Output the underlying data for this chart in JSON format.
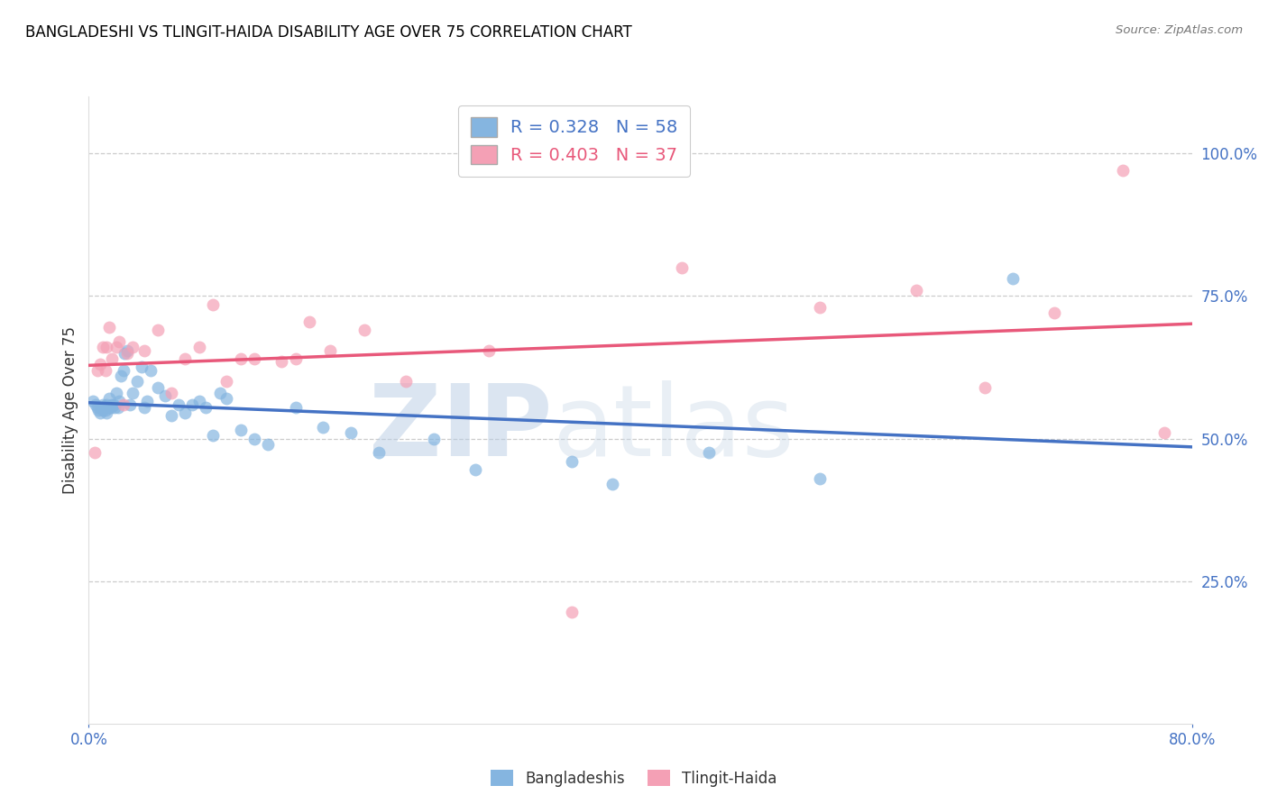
{
  "title": "BANGLADESHI VS TLINGIT-HAIDA DISABILITY AGE OVER 75 CORRELATION CHART",
  "source": "Source: ZipAtlas.com",
  "ylabel": "Disability Age Over 75",
  "x_min": 0.0,
  "x_max": 0.8,
  "y_min": 0.0,
  "y_max": 1.1,
  "y_ticks_right": [
    0.25,
    0.5,
    0.75,
    1.0
  ],
  "y_tick_labels_right": [
    "25.0%",
    "50.0%",
    "75.0%",
    "100.0%"
  ],
  "grid_color": "#cccccc",
  "background_color": "#ffffff",
  "blue_color": "#85b5e0",
  "pink_color": "#f4a0b5",
  "blue_line_color": "#4472c4",
  "pink_line_color": "#e8587a",
  "axis_color": "#4472c4",
  "title_color": "#000000",
  "R_blue": 0.328,
  "N_blue": 58,
  "R_pink": 0.403,
  "N_pink": 37,
  "watermark_zip": "ZIP",
  "watermark_atlas": "atlas",
  "legend_label_blue": "Bangladeshis",
  "legend_label_pink": "Tlingit-Haida",
  "blue_dots_x": [
    0.003,
    0.005,
    0.006,
    0.007,
    0.008,
    0.009,
    0.01,
    0.01,
    0.011,
    0.012,
    0.013,
    0.013,
    0.014,
    0.015,
    0.015,
    0.016,
    0.017,
    0.018,
    0.019,
    0.02,
    0.021,
    0.022,
    0.023,
    0.025,
    0.026,
    0.028,
    0.03,
    0.032,
    0.035,
    0.038,
    0.04,
    0.042,
    0.045,
    0.05,
    0.055,
    0.06,
    0.065,
    0.07,
    0.075,
    0.08,
    0.085,
    0.09,
    0.095,
    0.1,
    0.11,
    0.12,
    0.13,
    0.15,
    0.17,
    0.19,
    0.21,
    0.25,
    0.28,
    0.35,
    0.38,
    0.45,
    0.53,
    0.67
  ],
  "blue_dots_y": [
    0.565,
    0.56,
    0.555,
    0.55,
    0.545,
    0.555,
    0.55,
    0.56,
    0.555,
    0.55,
    0.545,
    0.56,
    0.555,
    0.555,
    0.57,
    0.555,
    0.56,
    0.56,
    0.555,
    0.58,
    0.555,
    0.565,
    0.61,
    0.62,
    0.65,
    0.655,
    0.56,
    0.58,
    0.6,
    0.625,
    0.555,
    0.565,
    0.62,
    0.59,
    0.575,
    0.54,
    0.56,
    0.545,
    0.56,
    0.565,
    0.555,
    0.505,
    0.58,
    0.57,
    0.515,
    0.5,
    0.49,
    0.555,
    0.52,
    0.51,
    0.475,
    0.5,
    0.445,
    0.46,
    0.42,
    0.475,
    0.43,
    0.78
  ],
  "pink_dots_x": [
    0.004,
    0.006,
    0.008,
    0.01,
    0.012,
    0.013,
    0.015,
    0.017,
    0.02,
    0.022,
    0.025,
    0.028,
    0.032,
    0.04,
    0.05,
    0.06,
    0.07,
    0.08,
    0.09,
    0.1,
    0.11,
    0.12,
    0.14,
    0.15,
    0.16,
    0.175,
    0.2,
    0.23,
    0.29,
    0.35,
    0.43,
    0.53,
    0.6,
    0.65,
    0.7,
    0.75,
    0.78
  ],
  "pink_dots_y": [
    0.475,
    0.62,
    0.63,
    0.66,
    0.62,
    0.66,
    0.695,
    0.64,
    0.66,
    0.67,
    0.56,
    0.65,
    0.66,
    0.655,
    0.69,
    0.58,
    0.64,
    0.66,
    0.735,
    0.6,
    0.64,
    0.64,
    0.635,
    0.64,
    0.705,
    0.655,
    0.69,
    0.6,
    0.655,
    0.195,
    0.8,
    0.73,
    0.76,
    0.59,
    0.72,
    0.97,
    0.51
  ]
}
